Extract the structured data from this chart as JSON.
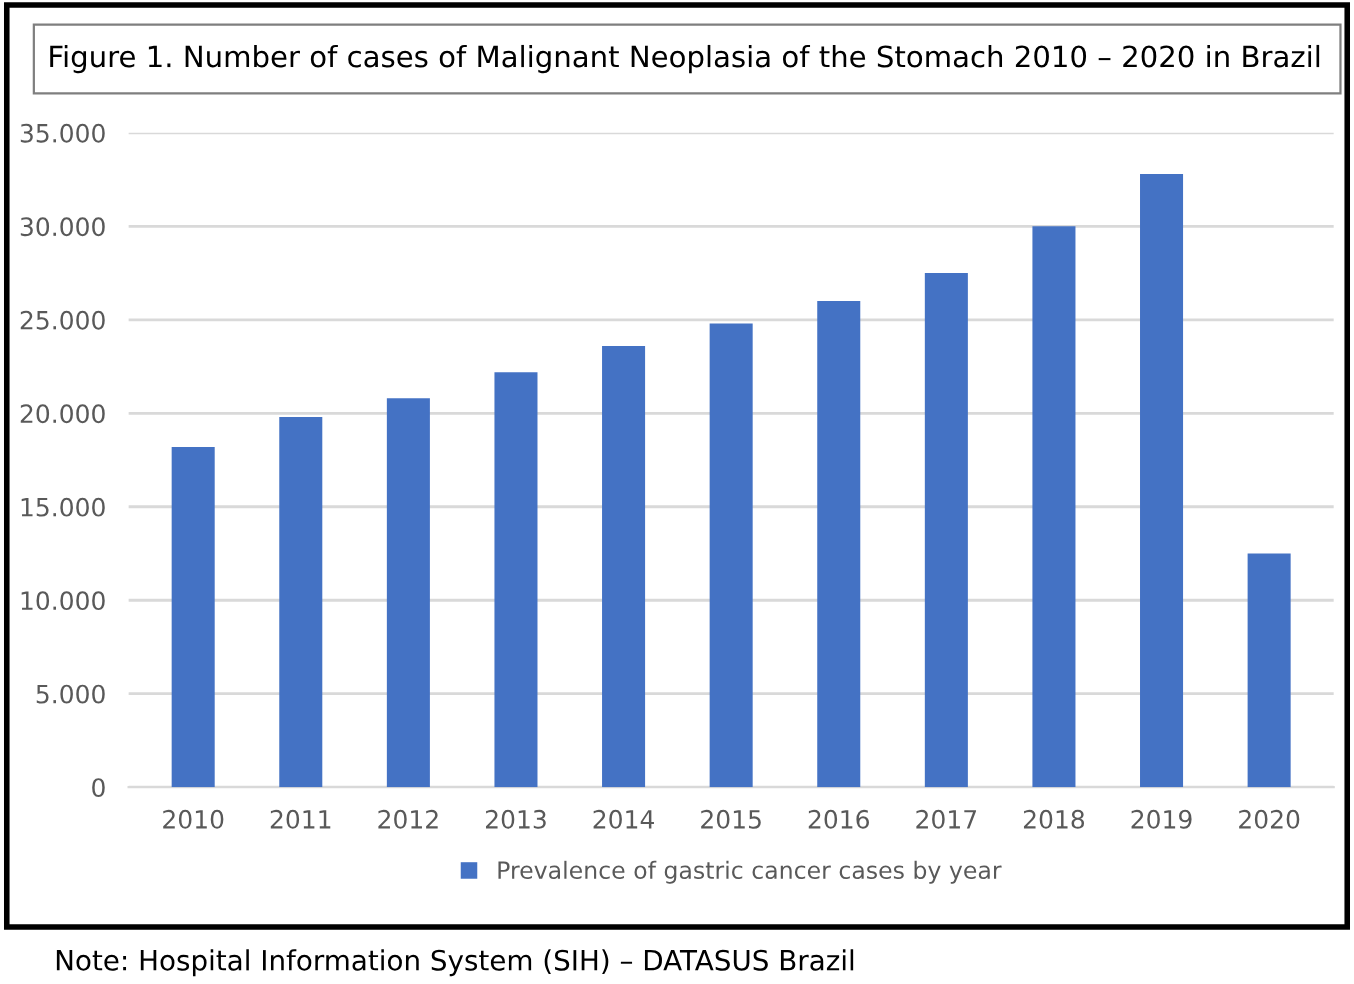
{
  "chart_data": {
    "type": "bar",
    "title": "Figure 1. Number of cases of Malignant Neoplasia of the Stomach 2010 – 2020 in Brazil",
    "categories": [
      "2010",
      "2011",
      "2012",
      "2013",
      "2014",
      "2015",
      "2016",
      "2017",
      "2018",
      "2019",
      "2020"
    ],
    "series": [
      {
        "name": "Prevalence of gastric cancer cases by year",
        "color": "#4472c4",
        "values": [
          18200,
          19800,
          20800,
          22200,
          23600,
          24800,
          26000,
          27500,
          30000,
          32800,
          12500
        ]
      }
    ],
    "ylim": [
      0,
      35000
    ],
    "yticks": [
      0,
      {
        "value": 5000,
        "label": "5.000"
      },
      {
        "value": 10000,
        "label": "10.000"
      },
      {
        "value": 15000,
        "label": "15.000"
      },
      {
        "value": 20000,
        "label": "20.000"
      },
      {
        "value": 25000,
        "label": "25.000"
      },
      {
        "value": 30000,
        "label": "30.000"
      },
      {
        "value": 35000,
        "label": "35.000"
      }
    ],
    "grid": "y",
    "legend": "bottom",
    "annotations": [
      "Note: Hospital Information System (SIH) – DATASUS Brazil"
    ]
  }
}
